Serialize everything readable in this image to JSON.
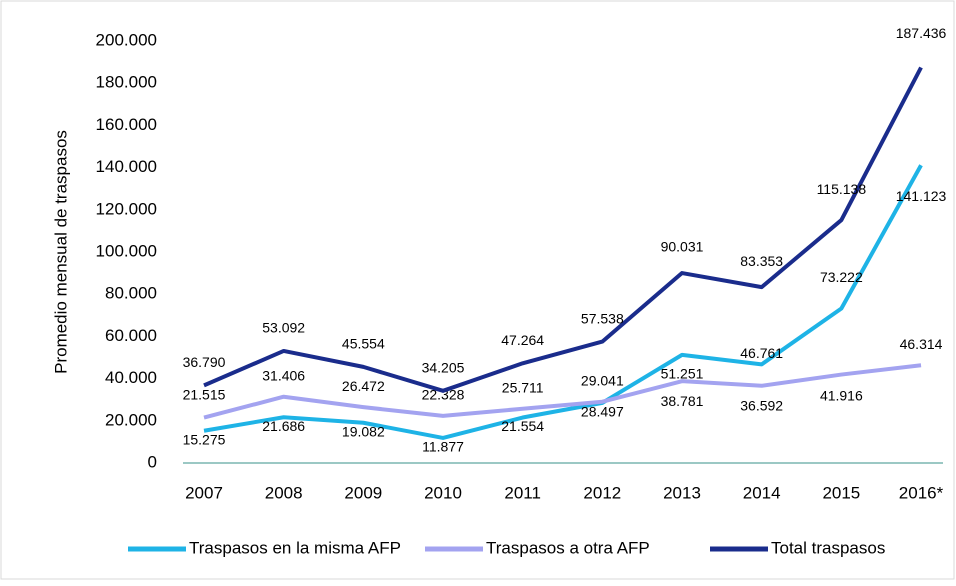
{
  "chart_data": {
    "type": "line",
    "y_label": "Promedio mensual de traspasos",
    "categories": [
      "2007",
      "2008",
      "2009",
      "2010",
      "2011",
      "2012",
      "2013",
      "2014",
      "2015",
      "2016*"
    ],
    "series": [
      {
        "name": "Traspasos en la misma AFP",
        "color": "#1eb3e6",
        "values": [
          15275,
          21686,
          19082,
          11877,
          21554,
          28497,
          51251,
          46761,
          73222,
          141123
        ],
        "value_labels": [
          "15.275",
          "21.686",
          "19.082",
          "11.877",
          "21.554",
          "28.497",
          "51.251",
          "46.761",
          "73.222",
          "141.123"
        ]
      },
      {
        "name": "Traspasos a otra AFP",
        "color": "#a3a3f0",
        "values": [
          21515,
          31406,
          26472,
          22328,
          25711,
          29041,
          38781,
          36592,
          41916,
          46314
        ],
        "value_labels": [
          "21.515",
          "31.406",
          "26.472",
          "22.328",
          "25.711",
          "29.041",
          "38.781",
          "36.592",
          "41.916",
          "46.314"
        ]
      },
      {
        "name": "Total traspasos",
        "color": "#1a2c8c",
        "values": [
          36790,
          53092,
          45554,
          34205,
          47264,
          57538,
          90031,
          83353,
          115138,
          187436
        ],
        "value_labels": [
          "36.790",
          "53.092",
          "45.554",
          "34.205",
          "47.264",
          "57.538",
          "90.031",
          "83.353",
          "115.138",
          "187.436"
        ]
      }
    ],
    "ylim": [
      0,
      200000
    ],
    "yticks": [
      0,
      {
        "value": 20000,
        "label": "20.000"
      },
      {
        "value": 40000,
        "label": "40.000"
      },
      {
        "value": 60000,
        "label": "60.000"
      },
      {
        "value": 80000,
        "label": "80.000"
      },
      {
        "value": 100000,
        "label": "100.000"
      },
      {
        "value": 120000,
        "label": "120.000"
      },
      {
        "value": 140000,
        "label": "140.000"
      },
      {
        "value": 160000,
        "label": "160.000"
      },
      {
        "value": 180000,
        "label": "180.000"
      },
      {
        "value": 200000,
        "label": "200.000"
      }
    ],
    "grid": false
  }
}
